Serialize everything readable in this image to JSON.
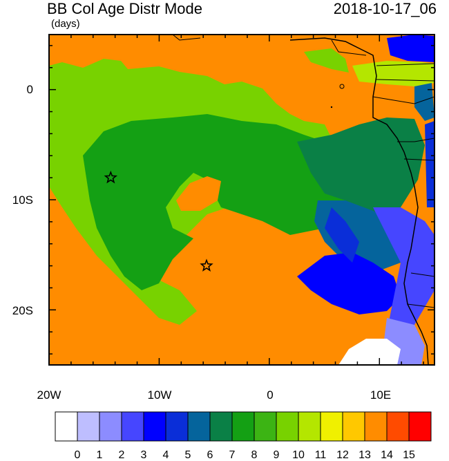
{
  "header": {
    "title": "BB Col Age Distr Mode",
    "units": "(days)",
    "datetime": "2018-10-17_06"
  },
  "axes": {
    "y_ticks": [
      "0",
      "10S",
      "20S"
    ],
    "x_ticks": [
      "20W",
      "10W",
      "0",
      "10E"
    ]
  },
  "colorbar": {
    "labels": [
      "0",
      "1",
      "2",
      "3",
      "4",
      "5",
      "6",
      "7",
      "8",
      "9",
      "10",
      "11",
      "12",
      "13",
      "14",
      "15"
    ],
    "colors": [
      "#ffffff",
      "#bebeff",
      "#8c8cff",
      "#4646ff",
      "#0000ff",
      "#0a2ed8",
      "#05649c",
      "#0a8046",
      "#14a014",
      "#3cb414",
      "#78d200",
      "#b4e600",
      "#f0f000",
      "#ffc800",
      "#ff8c00",
      "#ff4b00",
      "#ff0000"
    ]
  },
  "map": {
    "background_color": "#ff8c00",
    "markers": [
      {
        "name": "site-star-west",
        "lon": -14.4,
        "lat": -8.0
      },
      {
        "name": "site-star-south",
        "lon": -5.7,
        "lat": -16.0
      }
    ]
  }
}
